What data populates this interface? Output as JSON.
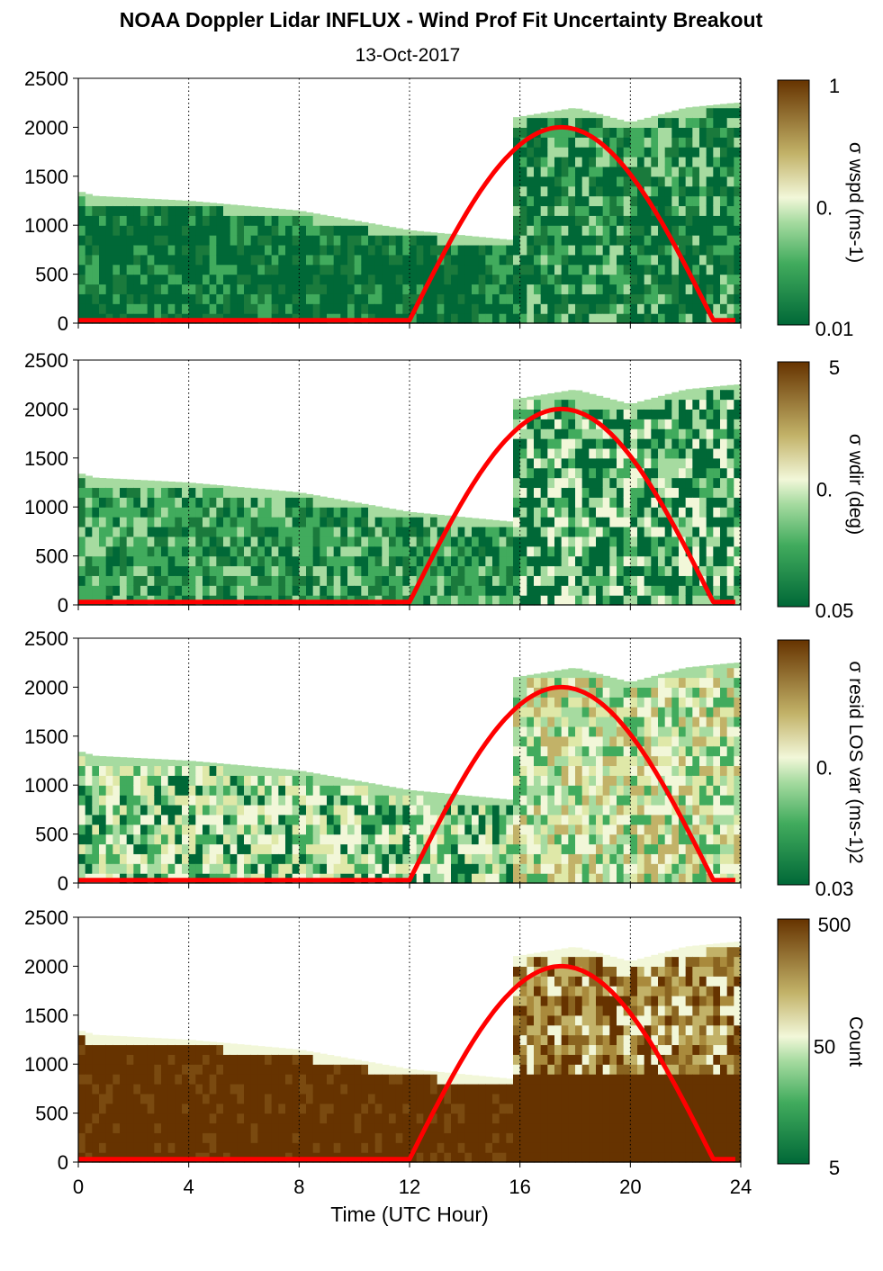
{
  "header": {
    "title": "NOAA Doppler Lidar INFLUX - Wind Prof Fit Uncertainty Breakout",
    "date": "13-Oct-2017"
  },
  "xaxis": {
    "label": "Time (UTC Hour)",
    "ticks": [
      "0",
      "4",
      "8",
      "12",
      "16",
      "20",
      "24"
    ]
  },
  "yaxis": {
    "ticks": [
      "0",
      "500",
      "1000",
      "1500",
      "2000",
      "2500"
    ]
  },
  "colors": {
    "dark_green": "#006837",
    "mid_green": "#41ab5d",
    "light_green": "#a6dba0",
    "pale": "#f2f7d9",
    "tan": "#c2b268",
    "dark_brown": "#663300",
    "solar_curve": "#ff0000"
  },
  "panels": [
    {
      "colorbar": {
        "label": "σ wspd (ms-1)",
        "top": "1",
        "mid": "0.",
        "bottom": "0.01"
      }
    },
    {
      "colorbar": {
        "label": "σ wdir (deg)",
        "top": "5",
        "mid": "0.",
        "bottom": "0.05"
      }
    },
    {
      "colorbar": {
        "label": "σ resid LOS var (ms-1)2",
        "top": "",
        "mid": "0.",
        "bottom": "0.03"
      }
    },
    {
      "colorbar": {
        "label": "Count",
        "top": "500",
        "mid": "50",
        "bottom": "5"
      }
    }
  ],
  "chart_data": [
    {
      "type": "heatmap",
      "panel": 1,
      "quantity": "wind speed fit uncertainty",
      "xlim": [
        0,
        24
      ],
      "ylim": [
        0,
        2500
      ],
      "color_scale": "log",
      "crange": [
        0.01,
        1
      ],
      "data_top_profile": {
        "x": [
          0,
          0.6,
          4,
          8,
          12,
          15.7,
          15.8,
          18,
          20,
          22,
          23.8
        ],
        "y": [
          1350,
          1300,
          1250,
          1150,
          950,
          850,
          2100,
          2200,
          2050,
          2200,
          2250
        ]
      },
      "solar_curve": {
        "x": [
          0,
          12,
          17.5,
          23,
          23.8
        ],
        "y": [
          30,
          30,
          2000,
          30,
          30
        ]
      }
    },
    {
      "type": "heatmap",
      "panel": 2,
      "quantity": "wind direction fit uncertainty",
      "xlim": [
        0,
        24
      ],
      "ylim": [
        0,
        2500
      ],
      "color_scale": "log",
      "crange": [
        0.05,
        5
      ]
    },
    {
      "type": "heatmap",
      "panel": 3,
      "quantity": "residual LOS variance",
      "xlim": [
        0,
        24
      ],
      "ylim": [
        0,
        2500
      ],
      "color_scale": "log"
    },
    {
      "type": "heatmap",
      "panel": 4,
      "quantity": "count",
      "xlim": [
        0,
        24
      ],
      "ylim": [
        0,
        2500
      ],
      "color_scale": "log",
      "crange": [
        5,
        500
      ]
    }
  ]
}
